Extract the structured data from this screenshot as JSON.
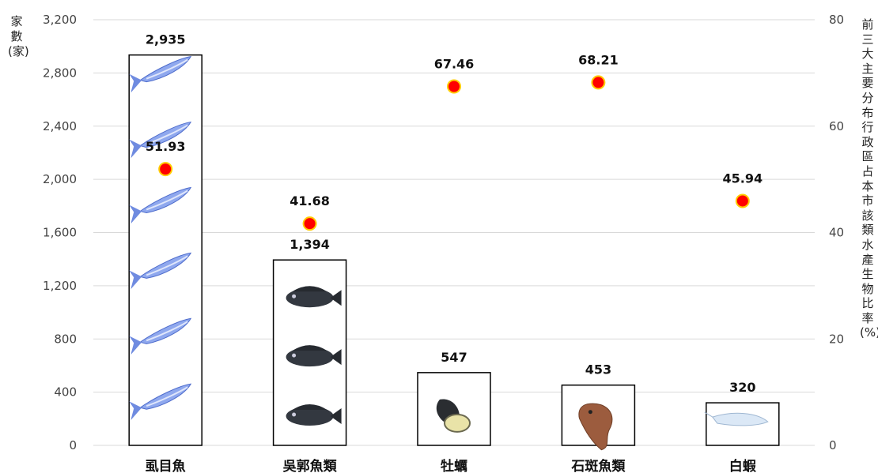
{
  "chart_data": {
    "type": "bar",
    "categories": [
      "虱目魚",
      "吳郭魚類",
      "牡蠣",
      "石斑魚類",
      "白蝦"
    ],
    "series": [
      {
        "name": "家數(家)",
        "type": "bar",
        "axis": "left",
        "values": [
          2935,
          1394,
          547,
          453,
          320
        ],
        "labels": [
          "2,935",
          "1,394",
          "547",
          "453",
          "320"
        ]
      },
      {
        "name": "前三大主要分布行政區占本市該類水產生物比率(%)",
        "type": "scatter",
        "axis": "right",
        "values": [
          51.93,
          41.68,
          67.46,
          68.21,
          45.94
        ],
        "labels": [
          "51.93",
          "41.68",
          "67.46",
          "68.21",
          "45.94"
        ]
      }
    ],
    "ylabel": "家數(家)",
    "y2label": "前三大主要分布行政區占本市該類水產生物比率(%)",
    "ylim": [
      0,
      3200
    ],
    "y2lim": [
      0,
      80
    ],
    "yticks": [
      "0",
      "400",
      "800",
      "1,200",
      "1,600",
      "2,000",
      "2,400",
      "2,800",
      "3,200"
    ],
    "y2ticks": [
      "0",
      "20",
      "40",
      "60",
      "80"
    ],
    "grid": true,
    "legend": "none",
    "colors": {
      "bar_fill": "#ffffff",
      "bar_stroke": "#000000",
      "dot": "#ff0000",
      "dot_ring": "#ffcc00",
      "grid": "#d9d9d9"
    },
    "icons": [
      "milkfish-icon",
      "tilapia-icon",
      "oyster-icon",
      "grouper-icon",
      "shrimp-icon"
    ]
  }
}
